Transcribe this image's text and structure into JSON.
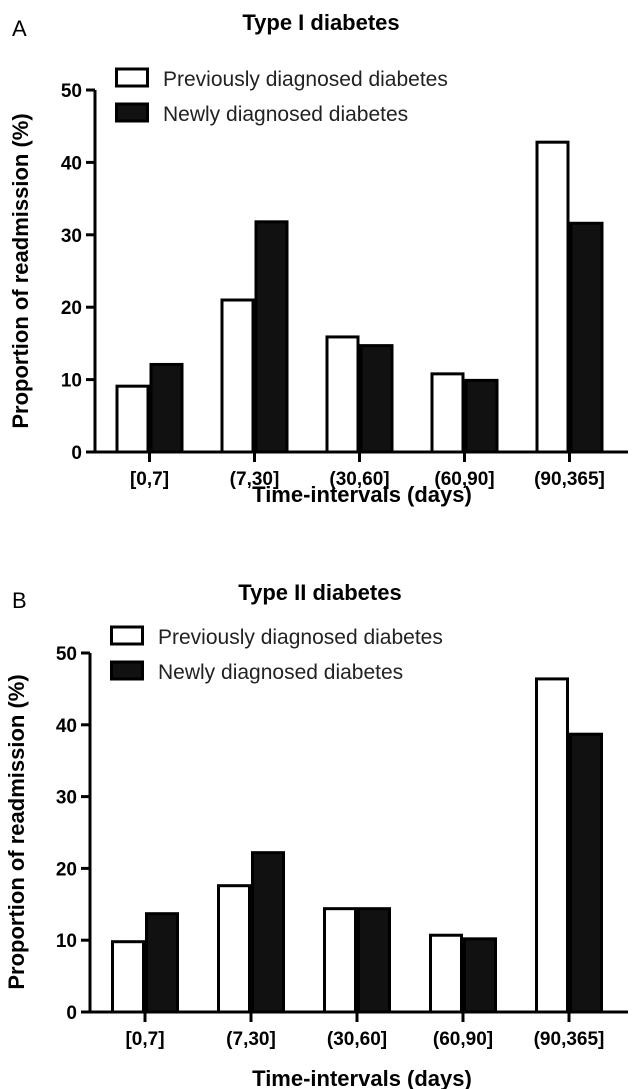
{
  "chart_data": [
    {
      "type": "bar",
      "panel": "A",
      "title": "Type I diabetes",
      "xlabel": "Time-intervals (days)",
      "ylabel": "Proportion of readmission (%)",
      "ylim": [
        0,
        50
      ],
      "yticks": [
        0,
        10,
        20,
        30,
        40,
        50
      ],
      "categories": [
        "[0,7]",
        "(7,30]",
        "(30,60]",
        "(60,90]",
        "(90,365]"
      ],
      "series": [
        {
          "name": "Previously diagnosed diabetes",
          "values": [
            9.3,
            21.2,
            16.1,
            11.0,
            43.0
          ],
          "color": "#ffffff"
        },
        {
          "name": "Newly diagnosed diabetes",
          "values": [
            12.3,
            32.0,
            14.9,
            10.1,
            31.8
          ],
          "color": "#111111"
        }
      ],
      "legend": "top-left",
      "grid": false
    },
    {
      "type": "bar",
      "panel": "B",
      "title": "Type II diabetes",
      "xlabel": "Time-intervals (days)",
      "ylabel": "Proportion of readmission (%)",
      "ylim": [
        0,
        50
      ],
      "yticks": [
        0,
        10,
        20,
        30,
        40,
        50
      ],
      "categories": [
        "[0,7]",
        "(7,30]",
        "(30,60]",
        "(60,90]",
        "(90,365]"
      ],
      "series": [
        {
          "name": "Previously diagnosed diabetes",
          "values": [
            10.0,
            17.8,
            14.6,
            10.9,
            46.6
          ],
          "color": "#ffffff"
        },
        {
          "name": "Newly diagnosed diabetes",
          "values": [
            13.9,
            22.4,
            14.6,
            10.4,
            38.9
          ],
          "color": "#111111"
        }
      ],
      "legend": "top-left",
      "grid": false
    }
  ]
}
